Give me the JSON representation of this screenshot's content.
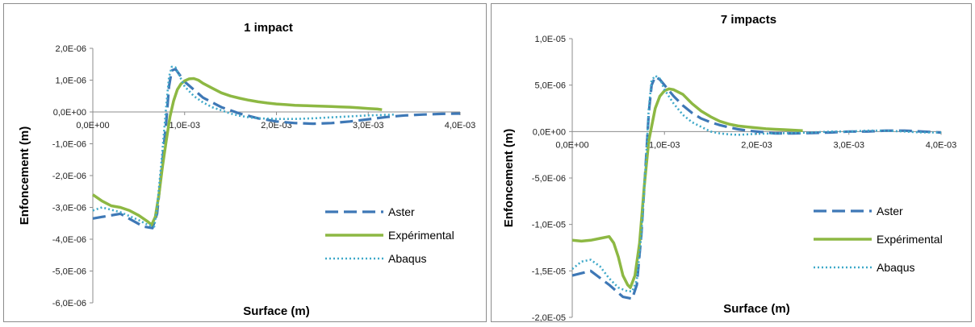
{
  "chart_data": [
    {
      "type": "line",
      "title": "1 impact",
      "xlabel": "Surface (m)",
      "ylabel": "Enfoncement (m)",
      "xlim": [
        0,
        0.004
      ],
      "ylim": [
        -6e-06,
        2e-06
      ],
      "x_ticks": [
        "0,0E+00",
        "1,0E-03",
        "2,0E-03",
        "3,0E-03",
        "4,0E-03"
      ],
      "y_ticks": [
        "2,0E-06",
        "1,0E-06",
        "0,0E+00",
        "-1,0E-06",
        "-2,0E-06",
        "-3,0E-06",
        "-4,0E-06",
        "-5,0E-06",
        "-6,0E-06"
      ],
      "grid": false,
      "legend_position": "bottom-right",
      "series": [
        {
          "name": "Aster",
          "color": "#3e78b6",
          "dash": "long-dash",
          "x": [
            0,
            0.0003,
            0.00055,
            0.00065,
            0.0007,
            0.00075,
            0.0008,
            0.00083,
            0.00086,
            0.0009,
            0.00095,
            0.001,
            0.0011,
            0.0012,
            0.0014,
            0.0016,
            0.0018,
            0.002,
            0.0022,
            0.0024,
            0.0026,
            0.0028,
            0.003,
            0.0032,
            0.0034,
            0.0036,
            0.0038,
            0.004
          ],
          "y": [
            -3.35e-06,
            -3.2e-06,
            -3.6e-06,
            -3.65e-06,
            -3.2e-06,
            -1.8e-06,
            -3e-07,
            8e-07,
            1.3e-06,
            1.35e-06,
            1.15e-06,
            9.5e-07,
            7e-07,
            4.5e-07,
            1.5e-07,
            -5e-08,
            -2e-07,
            -3e-07,
            -3.5e-07,
            -3.7e-07,
            -3.5e-07,
            -3e-07,
            -2.3e-07,
            -1.6e-07,
            -1.1e-07,
            -8e-08,
            -6e-08,
            -5e-08
          ]
        },
        {
          "name": "Expérimental",
          "color": "#8db843",
          "dash": "solid",
          "x": [
            0,
            0.0001,
            0.0002,
            0.0003,
            0.0004,
            0.0005,
            0.0006,
            0.00064,
            0.00068,
            0.00072,
            0.00076,
            0.0008,
            0.00084,
            0.00088,
            0.00092,
            0.00096,
            0.001,
            0.00105,
            0.0011,
            0.00115,
            0.0012,
            0.0013,
            0.0014,
            0.0015,
            0.0016,
            0.0017,
            0.0018,
            0.0019,
            0.002,
            0.0021,
            0.0022,
            0.0023,
            0.0024,
            0.0025,
            0.0026,
            0.0027,
            0.0028,
            0.0029,
            0.003,
            0.0031,
            0.00315
          ],
          "y": [
            -2.6e-06,
            -2.8e-06,
            -2.95e-06,
            -3e-06,
            -3.1e-06,
            -3.25e-06,
            -3.45e-06,
            -3.55e-06,
            -3.3e-06,
            -2.6e-06,
            -1.7e-06,
            -9e-07,
            -1.5e-07,
            3.5e-07,
            7e-07,
            8.8e-07,
            9.8e-07,
            1.04e-06,
            1.05e-06,
            1e-06,
            9e-07,
            7.5e-07,
            6e-07,
            5e-07,
            4.3e-07,
            3.7e-07,
            3.2e-07,
            2.8e-07,
            2.5e-07,
            2.3e-07,
            2.1e-07,
            2e-07,
            1.9e-07,
            1.8e-07,
            1.7e-07,
            1.6e-07,
            1.5e-07,
            1.3e-07,
            1.1e-07,
            9e-08,
            7e-08
          ]
        },
        {
          "name": "Abaqus",
          "color": "#3fa9c9",
          "dash": "dotted",
          "x": [
            0,
            0.0001,
            0.0003,
            0.0005,
            0.0006,
            0.00067,
            0.0007,
            0.00075,
            0.0008,
            0.00083,
            0.00086,
            0.0009,
            0.00095,
            0.001,
            0.0011,
            0.0012,
            0.0013,
            0.0014,
            0.0015,
            0.0016,
            0.0017,
            0.0018,
            0.0019,
            0.002,
            0.0022,
            0.0024,
            0.0026,
            0.0028,
            0.003,
            0.0033
          ],
          "y": [
            -3.1e-06,
            -3e-06,
            -3.15e-06,
            -3.4e-06,
            -3.55e-06,
            -3.6e-06,
            -3e-06,
            -1.5e-06,
            2e-07,
            1.1e-06,
            1.42e-06,
            1.4e-06,
            1.1e-06,
            8e-07,
            5e-07,
            3e-07,
            1.5e-07,
            5e-08,
            -5e-08,
            -1.2e-07,
            -1.7e-07,
            -2e-07,
            -2.1e-07,
            -2.2e-07,
            -2.2e-07,
            -2e-07,
            -1.7e-07,
            -1.4e-07,
            -1.1e-07,
            -8e-08
          ]
        }
      ]
    },
    {
      "type": "line",
      "title": "7 impacts",
      "xlabel": "Surface (m)",
      "ylabel": "Enfoncement (m)",
      "xlim": [
        0,
        0.004
      ],
      "ylim": [
        -2e-05,
        1e-05
      ],
      "x_ticks": [
        "0,0E+00",
        "1,0E-03",
        "2,0E-03",
        "3,0E-03",
        "4,0E-03"
      ],
      "y_ticks": [
        "1,0E-05",
        "5,0E-06",
        "0,0E+00",
        "-5,0E-06",
        "-1,0E-05",
        "-1,5E-05",
        "-2,0E-05"
      ],
      "grid": false,
      "legend_position": "bottom-right",
      "series": [
        {
          "name": "Aster",
          "color": "#3e78b6",
          "dash": "long-dash",
          "x": [
            0,
            0.0002,
            0.0004,
            0.00055,
            0.00065,
            0.0007,
            0.00075,
            0.0008,
            0.00083,
            0.00086,
            0.0009,
            0.00095,
            0.001,
            0.0011,
            0.0012,
            0.0013,
            0.0014,
            0.0015,
            0.0016,
            0.0017,
            0.0018,
            0.0019,
            0.002,
            0.0022,
            0.0024,
            0.0026,
            0.0028,
            0.003,
            0.0032,
            0.0034,
            0.0036,
            0.0038,
            0.004
          ],
          "y": [
            -1.55e-05,
            -1.5e-05,
            -1.65e-05,
            -1.78e-05,
            -1.8e-05,
            -1.65e-05,
            -1.1e-05,
            -3e-06,
            2e-06,
            5e-06,
            5.9e-06,
            5.6e-06,
            5e-06,
            3.8e-06,
            2.8e-06,
            2e-06,
            1.4e-06,
            1e-06,
            7e-07,
            4.5e-07,
            2.5e-07,
            1e-07,
            0,
            -2e-07,
            -2e-07,
            -1.5e-07,
            -1e-07,
            0,
            0,
            1e-07,
            1e-07,
            0,
            -1e-07
          ]
        },
        {
          "name": "Expérimental",
          "color": "#8db843",
          "dash": "solid",
          "x": [
            0,
            0.0001,
            0.0002,
            0.0003,
            0.0004,
            0.00045,
            0.0005,
            0.00055,
            0.0006,
            0.00063,
            0.00068,
            0.00073,
            0.00078,
            0.00083,
            0.0009,
            0.00095,
            0.001,
            0.00105,
            0.0011,
            0.0012,
            0.0013,
            0.0014,
            0.0015,
            0.0016,
            0.0017,
            0.0018,
            0.0019,
            0.002,
            0.0021,
            0.0022,
            0.0023,
            0.0024,
            0.0025
          ],
          "y": [
            -1.17e-05,
            -1.18e-05,
            -1.17e-05,
            -1.15e-05,
            -1.13e-05,
            -1.2e-05,
            -1.35e-05,
            -1.55e-05,
            -1.65e-05,
            -1.68e-05,
            -1.55e-05,
            -1.2e-05,
            -6e-06,
            -1e-06,
            2.5e-06,
            3.8e-06,
            4.4e-06,
            4.6e-06,
            4.5e-06,
            4e-06,
            3e-06,
            2.2e-06,
            1.6e-06,
            1.1e-06,
            8e-07,
            6e-07,
            5e-07,
            4e-07,
            3e-07,
            2.5e-07,
            2e-07,
            1.5e-07,
            1e-07
          ]
        },
        {
          "name": "Abaqus",
          "color": "#3fa9c9",
          "dash": "dotted",
          "x": [
            0,
            0.0001,
            0.0002,
            0.0003,
            0.0004,
            0.0005,
            0.0006,
            0.00065,
            0.0007,
            0.00075,
            0.0008,
            0.00083,
            0.00086,
            0.0009,
            0.00095,
            0.001,
            0.0011,
            0.0012,
            0.0013,
            0.0014,
            0.0015,
            0.0016,
            0.0017,
            0.0018,
            0.0019,
            0.002,
            0.0022,
            0.0024,
            0.0026,
            0.0028,
            0.003,
            0.0032,
            0.0034,
            0.0036,
            0.0038,
            0.004
          ],
          "y": [
            -1.48e-05,
            -1.4e-05,
            -1.38e-05,
            -1.45e-05,
            -1.58e-05,
            -1.68e-05,
            -1.72e-05,
            -1.72e-05,
            -1.6e-05,
            -1.1e-05,
            -3e-06,
            2.5e-06,
            5.5e-06,
            6e-06,
            5.7e-06,
            4.5e-06,
            3e-06,
            1.8e-06,
            1e-06,
            5e-07,
            0,
            -2e-07,
            -3e-07,
            -3.5e-07,
            -3e-07,
            -2.5e-07,
            -2e-07,
            -1.5e-07,
            -1e-07,
            0,
            0,
            1e-07,
            1e-07,
            0,
            -1e-07,
            -1e-07
          ]
        }
      ]
    }
  ]
}
